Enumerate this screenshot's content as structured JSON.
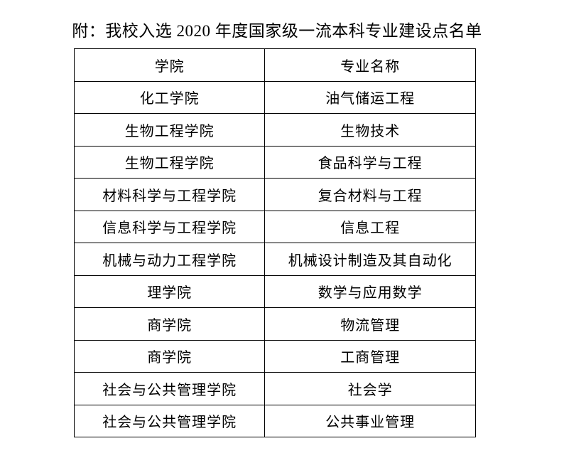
{
  "page": {
    "title": "附：我校入选 2020 年度国家级一流本科专业建设点名单"
  },
  "table": {
    "headers": [
      "学院",
      "专业名称"
    ],
    "rows": [
      [
        "化工学院",
        "油气储运工程"
      ],
      [
        "生物工程学院",
        "生物技术"
      ],
      [
        "生物工程学院",
        "食品科学与工程"
      ],
      [
        "材料科学与工程学院",
        "复合材料与工程"
      ],
      [
        "信息科学与工程学院",
        "信息工程"
      ],
      [
        "机械与动力工程学院",
        "机械设计制造及其自动化"
      ],
      [
        "理学院",
        "数学与应用数学"
      ],
      [
        "商学院",
        "物流管理"
      ],
      [
        "商学院",
        "工商管理"
      ],
      [
        "社会与公共管理学院",
        "社会学"
      ],
      [
        "社会与公共管理学院",
        "公共事业管理"
      ]
    ]
  },
  "colors": {
    "text": "#000000",
    "background": "#ffffff",
    "border": "#000000"
  }
}
